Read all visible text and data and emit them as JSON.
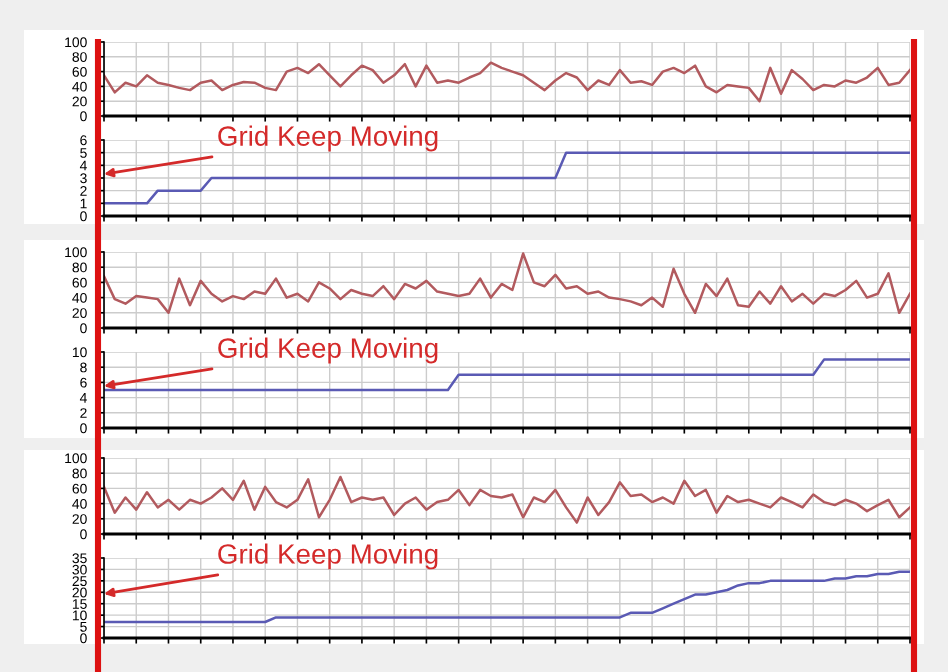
{
  "chart_data": [
    {
      "type": "line",
      "categories": [
        null,
        null,
        null,
        null,
        null,
        null,
        null,
        null,
        null,
        null,
        null,
        null,
        null,
        null,
        null,
        null,
        null,
        null,
        null,
        null,
        null,
        null,
        null,
        null,
        null,
        null,
        null,
        null,
        null,
        null,
        null,
        null,
        null,
        null,
        null,
        null,
        null,
        null,
        null,
        null,
        null,
        null,
        null,
        null,
        null,
        null,
        null,
        null,
        null,
        null,
        null,
        null,
        null,
        null,
        null,
        null,
        null,
        null,
        null,
        null,
        null,
        null,
        null,
        null,
        null,
        null,
        null,
        null,
        null,
        null,
        null,
        null,
        null,
        null,
        null,
        null
      ],
      "series": [
        {
          "color": "#b25a5e",
          "values": [
            55,
            32,
            45,
            40,
            55,
            45,
            42,
            38,
            35,
            45,
            48,
            35,
            42,
            46,
            45,
            38,
            35,
            60,
            65,
            58,
            70,
            55,
            40,
            55,
            68,
            62,
            45,
            55,
            70,
            40,
            68,
            45,
            48,
            45,
            52,
            58,
            72,
            65,
            60,
            55,
            45,
            35,
            48,
            58,
            52,
            35,
            48,
            42,
            62,
            45,
            47,
            42,
            60,
            65,
            58,
            68,
            40,
            32,
            42,
            40,
            38,
            20,
            65,
            30,
            62,
            50,
            35,
            42,
            40,
            48,
            45,
            52,
            65,
            42,
            45,
            62
          ]
        }
      ],
      "ylim": [
        0,
        100
      ],
      "yticks": [
        0,
        20,
        40,
        60,
        80,
        100
      ],
      "grid": true,
      "tick_labels": "y"
    },
    {
      "type": "line",
      "categories": [
        null,
        null,
        null,
        null,
        null,
        null,
        null,
        null,
        null,
        null,
        null,
        null,
        null,
        null,
        null,
        null,
        null,
        null,
        null,
        null,
        null,
        null,
        null,
        null,
        null,
        null,
        null,
        null,
        null,
        null,
        null,
        null,
        null,
        null,
        null,
        null,
        null,
        null,
        null,
        null,
        null,
        null,
        null,
        null,
        null,
        null,
        null,
        null,
        null,
        null,
        null,
        null,
        null,
        null,
        null,
        null,
        null,
        null,
        null,
        null,
        null,
        null,
        null,
        null,
        null,
        null,
        null,
        null,
        null,
        null,
        null,
        null,
        null,
        null,
        null,
        null
      ],
      "series": [
        {
          "color": "#5a5ab4",
          "values": [
            1,
            1,
            1,
            1,
            1,
            2,
            2,
            2,
            2,
            2,
            3,
            3,
            3,
            3,
            3,
            3,
            3,
            3,
            3,
            3,
            3,
            3,
            3,
            3,
            3,
            3,
            3,
            3,
            3,
            3,
            3,
            3,
            3,
            3,
            3,
            3,
            3,
            3,
            3,
            3,
            3,
            3,
            3,
            5,
            5,
            5,
            5,
            5,
            5,
            5,
            5,
            5,
            5,
            5,
            5,
            5,
            5,
            5,
            5,
            5,
            5,
            5,
            5,
            5,
            5,
            5,
            5,
            5,
            5,
            5,
            5,
            5,
            5,
            5,
            5,
            5
          ]
        }
      ],
      "ylim": [
        0,
        6
      ],
      "yticks": [
        0,
        1,
        2,
        3,
        4,
        5,
        6
      ],
      "grid": true,
      "tick_labels": "y",
      "annotations": [
        "Grid Keep Moving"
      ]
    },
    {
      "type": "line",
      "categories": [
        null,
        null,
        null,
        null,
        null,
        null,
        null,
        null,
        null,
        null,
        null,
        null,
        null,
        null,
        null,
        null,
        null,
        null,
        null,
        null,
        null,
        null,
        null,
        null,
        null,
        null,
        null,
        null,
        null,
        null,
        null,
        null,
        null,
        null,
        null,
        null,
        null,
        null,
        null,
        null,
        null,
        null,
        null,
        null,
        null,
        null,
        null,
        null,
        null,
        null,
        null,
        null,
        null,
        null,
        null,
        null,
        null,
        null,
        null,
        null,
        null,
        null,
        null,
        null,
        null,
        null,
        null,
        null,
        null,
        null,
        null,
        null,
        null,
        null,
        null,
        null
      ],
      "series": [
        {
          "color": "#b25a5e",
          "values": [
            68,
            38,
            32,
            42,
            40,
            38,
            20,
            65,
            30,
            62,
            45,
            35,
            42,
            38,
            48,
            45,
            65,
            40,
            45,
            35,
            60,
            52,
            38,
            50,
            45,
            42,
            55,
            38,
            58,
            52,
            62,
            48,
            45,
            42,
            45,
            65,
            40,
            58,
            50,
            98,
            60,
            55,
            70,
            52,
            55,
            45,
            48,
            40,
            38,
            35,
            30,
            40,
            28,
            78,
            45,
            20,
            58,
            42,
            65,
            30,
            28,
            48,
            32,
            55,
            35,
            45,
            32,
            45,
            42,
            50,
            62,
            40,
            45,
            72,
            20,
            45
          ]
        }
      ],
      "ylim": [
        0,
        100
      ],
      "yticks": [
        0,
        20,
        40,
        60,
        80,
        100
      ],
      "grid": true,
      "tick_labels": "y"
    },
    {
      "type": "line",
      "categories": [
        null,
        null,
        null,
        null,
        null,
        null,
        null,
        null,
        null,
        null,
        null,
        null,
        null,
        null,
        null,
        null,
        null,
        null,
        null,
        null,
        null,
        null,
        null,
        null,
        null,
        null,
        null,
        null,
        null,
        null,
        null,
        null,
        null,
        null,
        null,
        null,
        null,
        null,
        null,
        null,
        null,
        null,
        null,
        null,
        null,
        null,
        null,
        null,
        null,
        null,
        null,
        null,
        null,
        null,
        null,
        null,
        null,
        null,
        null,
        null,
        null,
        null,
        null,
        null,
        null,
        null,
        null,
        null,
        null,
        null,
        null,
        null,
        null,
        null,
        null,
        null
      ],
      "series": [
        {
          "color": "#5a5ab4",
          "values": [
            5,
            5,
            5,
            5,
            5,
            5,
            5,
            5,
            5,
            5,
            5,
            5,
            5,
            5,
            5,
            5,
            5,
            5,
            5,
            5,
            5,
            5,
            5,
            5,
            5,
            5,
            5,
            5,
            5,
            5,
            5,
            5,
            5,
            7,
            7,
            7,
            7,
            7,
            7,
            7,
            7,
            7,
            7,
            7,
            7,
            7,
            7,
            7,
            7,
            7,
            7,
            7,
            7,
            7,
            7,
            7,
            7,
            7,
            7,
            7,
            7,
            7,
            7,
            7,
            7,
            7,
            7,
            9,
            9,
            9,
            9,
            9,
            9,
            9,
            9,
            9
          ]
        }
      ],
      "ylim": [
        0,
        10
      ],
      "yticks": [
        0,
        2,
        4,
        6,
        8,
        10
      ],
      "grid": true,
      "tick_labels": "y",
      "annotations": [
        "Grid Keep Moving"
      ]
    },
    {
      "type": "line",
      "categories": [
        null,
        null,
        null,
        null,
        null,
        null,
        null,
        null,
        null,
        null,
        null,
        null,
        null,
        null,
        null,
        null,
        null,
        null,
        null,
        null,
        null,
        null,
        null,
        null,
        null,
        null,
        null,
        null,
        null,
        null,
        null,
        null,
        null,
        null,
        null,
        null,
        null,
        null,
        null,
        null,
        null,
        null,
        null,
        null,
        null,
        null,
        null,
        null,
        null,
        null,
        null,
        null,
        null,
        null,
        null,
        null,
        null,
        null,
        null,
        null,
        null,
        null,
        null,
        null,
        null,
        null,
        null,
        null,
        null,
        null,
        null,
        null,
        null,
        null,
        null,
        null
      ],
      "series": [
        {
          "color": "#b25a5e",
          "values": [
            62,
            28,
            48,
            32,
            55,
            35,
            45,
            32,
            45,
            40,
            48,
            60,
            45,
            70,
            32,
            62,
            42,
            35,
            45,
            72,
            22,
            45,
            75,
            42,
            48,
            45,
            48,
            25,
            40,
            48,
            32,
            42,
            45,
            58,
            38,
            58,
            50,
            48,
            52,
            22,
            48,
            42,
            58,
            35,
            15,
            48,
            25,
            42,
            68,
            50,
            52,
            42,
            48,
            40,
            70,
            50,
            58,
            28,
            50,
            42,
            45,
            40,
            35,
            48,
            42,
            35,
            52,
            42,
            38,
            45,
            40,
            30,
            38,
            45,
            22,
            35
          ]
        }
      ],
      "ylim": [
        0,
        100
      ],
      "yticks": [
        0,
        20,
        40,
        60,
        80,
        100
      ],
      "grid": true,
      "tick_labels": "y"
    },
    {
      "type": "line",
      "categories": [
        null,
        null,
        null,
        null,
        null,
        null,
        null,
        null,
        null,
        null,
        null,
        null,
        null,
        null,
        null,
        null,
        null,
        null,
        null,
        null,
        null,
        null,
        null,
        null,
        null,
        null,
        null,
        null,
        null,
        null,
        null,
        null,
        null,
        null,
        null,
        null,
        null,
        null,
        null,
        null,
        null,
        null,
        null,
        null,
        null,
        null,
        null,
        null,
        null,
        null,
        null,
        null,
        null,
        null,
        null,
        null,
        null,
        null,
        null,
        null,
        null,
        null,
        null,
        null,
        null,
        null,
        null,
        null,
        null,
        null,
        null,
        null,
        null,
        null,
        null,
        null
      ],
      "series": [
        {
          "color": "#5a5ab4",
          "values": [
            7,
            7,
            7,
            7,
            7,
            7,
            7,
            7,
            7,
            7,
            7,
            7,
            7,
            7,
            7,
            7,
            9,
            9,
            9,
            9,
            9,
            9,
            9,
            9,
            9,
            9,
            9,
            9,
            9,
            9,
            9,
            9,
            9,
            9,
            9,
            9,
            9,
            9,
            9,
            9,
            9,
            9,
            9,
            9,
            9,
            9,
            9,
            9,
            9,
            11,
            11,
            11,
            13,
            15,
            17,
            19,
            19,
            20,
            21,
            23,
            24,
            24,
            25,
            25,
            25,
            25,
            25,
            25,
            26,
            26,
            27,
            27,
            28,
            28,
            29,
            29
          ]
        }
      ],
      "ylim": [
        0,
        35
      ],
      "yticks": [
        0,
        5,
        10,
        15,
        20,
        25,
        30,
        35
      ],
      "grid": true,
      "tick_labels": "y",
      "annotations": [
        "Grid Keep Moving"
      ]
    }
  ]
}
